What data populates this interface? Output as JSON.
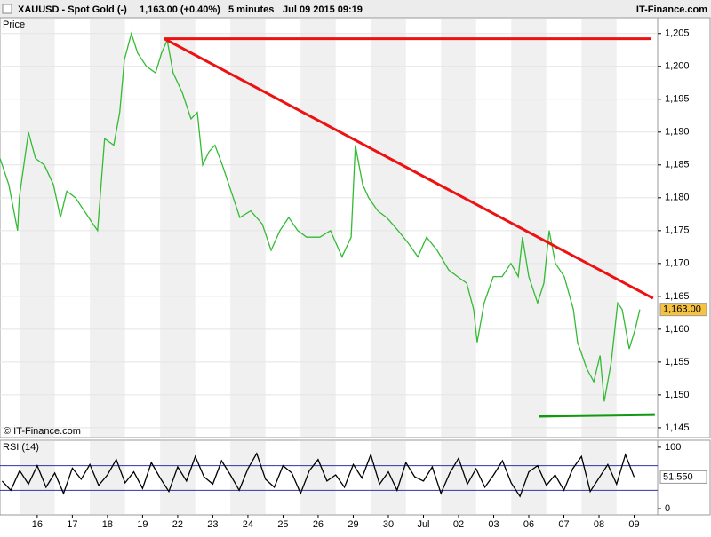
{
  "header": {
    "symbol": "XAUUSD - Spot Gold (-)",
    "quote": "1,163.00 (+0.40%)",
    "interval": "5 minutes",
    "datetime": "Jul 09 2015 09:19",
    "brand": "IT-Finance.com"
  },
  "chart_data": [
    {
      "type": "line",
      "title": "Price",
      "watermark": "© IT-Finance.com",
      "xlim": [
        -1.06,
        17.67
      ],
      "ylim": [
        1143.5,
        1207.4
      ],
      "yticks": [
        {
          "value": 1145,
          "label": "1,145"
        },
        {
          "value": 1150,
          "label": "1,150"
        },
        {
          "value": 1155,
          "label": "1,155"
        },
        {
          "value": 1160,
          "label": "1,160"
        },
        {
          "value": 1165,
          "label": "1,165"
        },
        {
          "value": 1170,
          "label": "1,170"
        },
        {
          "value": 1175,
          "label": "1,175"
        },
        {
          "value": 1180,
          "label": "1,180"
        },
        {
          "value": 1185,
          "label": "1,185"
        },
        {
          "value": 1190,
          "label": "1,190"
        },
        {
          "value": 1195,
          "label": "1,195"
        },
        {
          "value": 1200,
          "label": "1,200"
        },
        {
          "value": 1205,
          "label": "1,205"
        }
      ],
      "grid": true,
      "series": [
        {
          "name": "XAUUSD",
          "color": "#33bb33",
          "x": [
            -1.06,
            -0.81,
            -0.56,
            -0.51,
            -0.25,
            -0.05,
            0.2,
            0.46,
            0.66,
            0.84,
            1.09,
            1.34,
            1.59,
            1.72,
            1.92,
            2.18,
            2.35,
            2.48,
            2.68,
            2.86,
            3.11,
            3.37,
            3.54,
            3.7,
            3.87,
            4.13,
            4.38,
            4.56,
            4.71,
            4.89,
            5.06,
            5.27,
            5.52,
            5.77,
            6.08,
            6.41,
            6.66,
            6.91,
            7.16,
            7.42,
            7.67,
            8.05,
            8.35,
            8.68,
            8.94,
            9.06,
            9.27,
            9.44,
            9.7,
            9.95,
            10.28,
            10.58,
            10.84,
            11.09,
            11.39,
            11.72,
            11.97,
            12.23,
            12.43,
            12.53,
            12.73,
            12.99,
            13.24,
            13.49,
            13.7,
            13.82,
            14.0,
            14.25,
            14.43,
            14.58,
            14.76,
            15.01,
            15.27,
            15.39,
            15.52,
            15.65,
            15.85,
            16.03,
            16.15,
            16.35,
            16.53,
            16.66,
            16.86,
            17.03,
            17.16
          ],
          "values": [
            1186,
            1182,
            1175,
            1180,
            1190,
            1186,
            1185,
            1182,
            1177,
            1181,
            1180,
            1178,
            1176,
            1175,
            1189,
            1188,
            1193,
            1201,
            1205,
            1202,
            1200,
            1199,
            1202,
            1204,
            1199,
            1196,
            1192,
            1193,
            1185,
            1187,
            1188,
            1185,
            1181,
            1177,
            1178,
            1176,
            1172,
            1175,
            1177,
            1175,
            1174,
            1174,
            1175,
            1171,
            1174,
            1188,
            1182,
            1180,
            1178,
            1177,
            1175,
            1173,
            1171,
            1174,
            1172,
            1169,
            1168,
            1167,
            1163,
            1158,
            1164,
            1168,
            1168,
            1170,
            1168,
            1174,
            1168,
            1164,
            1167,
            1175,
            1170,
            1168,
            1163,
            1158,
            1156,
            1154,
            1152,
            1156,
            1149,
            1155,
            1164,
            1163,
            1157,
            1160,
            1163
          ]
        }
      ],
      "annotation_lines": [
        {
          "color": "#ee1111",
          "x": [
            3.62,
            17.49
          ],
          "values": [
            1204.2,
            1204.2
          ]
        },
        {
          "color": "#ee1111",
          "x": [
            3.62,
            17.54
          ],
          "values": [
            1204.2,
            1164.7
          ]
        },
        {
          "color": "#119911",
          "x": [
            14.3,
            17.59
          ],
          "values": [
            1146.75,
            1147
          ]
        }
      ],
      "last_value": {
        "value": 1163,
        "label": "1,163.00",
        "color": "#f5c242"
      }
    },
    {
      "type": "line",
      "title": "RSI (14)",
      "xlim": [
        -1.06,
        17.67
      ],
      "ylim": [
        -10,
        111.4
      ],
      "xticks": [
        {
          "value": 0,
          "label": "16"
        },
        {
          "value": 1,
          "label": "17"
        },
        {
          "value": 2,
          "label": "18"
        },
        {
          "value": 3,
          "label": "19"
        },
        {
          "value": 4,
          "label": "22"
        },
        {
          "value": 5,
          "label": "23"
        },
        {
          "value": 6,
          "label": "24"
        },
        {
          "value": 7,
          "label": "25"
        },
        {
          "value": 8,
          "label": "26"
        },
        {
          "value": 9,
          "label": "29"
        },
        {
          "value": 10,
          "label": "30"
        },
        {
          "value": 11,
          "label": "Jul"
        },
        {
          "value": 12,
          "label": "02"
        },
        {
          "value": 13,
          "label": "03"
        },
        {
          "value": 14,
          "label": "06"
        },
        {
          "value": 15,
          "label": "07"
        },
        {
          "value": 16,
          "label": "08"
        },
        {
          "value": 17,
          "label": "09"
        }
      ],
      "yticks": [
        0,
        100
      ],
      "reference_lines": [
        30,
        70
      ],
      "reference_color": "#3333aa",
      "series": [
        {
          "name": "RSI (14)",
          "color": "#000000",
          "x": [
            -1,
            -0.75,
            -0.5,
            -0.25,
            0,
            0.25,
            0.5,
            0.75,
            1,
            1.25,
            1.5,
            1.75,
            2,
            2.25,
            2.5,
            2.75,
            3,
            3.25,
            3.5,
            3.75,
            4,
            4.25,
            4.5,
            4.75,
            5,
            5.25,
            5.5,
            5.75,
            6,
            6.25,
            6.5,
            6.75,
            7,
            7.25,
            7.5,
            7.75,
            8,
            8.25,
            8.5,
            8.75,
            9,
            9.25,
            9.5,
            9.75,
            10,
            10.25,
            10.5,
            10.75,
            11,
            11.25,
            11.5,
            11.75,
            12,
            12.25,
            12.5,
            12.75,
            13,
            13.25,
            13.5,
            13.75,
            14,
            14.25,
            14.5,
            14.75,
            15,
            15.25,
            15.5,
            15.75,
            16,
            16.25,
            16.5,
            16.75,
            17
          ],
          "values": [
            45,
            30,
            62,
            40,
            70,
            35,
            58,
            25,
            66,
            48,
            72,
            38,
            55,
            80,
            42,
            60,
            33,
            75,
            50,
            28,
            68,
            45,
            85,
            52,
            40,
            78,
            55,
            30,
            65,
            90,
            48,
            35,
            70,
            58,
            25,
            62,
            80,
            45,
            55,
            35,
            72,
            50,
            88,
            40,
            60,
            30,
            75,
            52,
            45,
            68,
            25,
            58,
            82,
            40,
            65,
            35,
            55,
            78,
            42,
            20,
            60,
            70,
            38,
            55,
            30,
            65,
            85,
            28,
            50,
            72,
            40,
            88,
            51.55
          ]
        }
      ],
      "last_value": {
        "value": 51.55,
        "label": "51.550",
        "color": "#ffffff"
      }
    }
  ]
}
